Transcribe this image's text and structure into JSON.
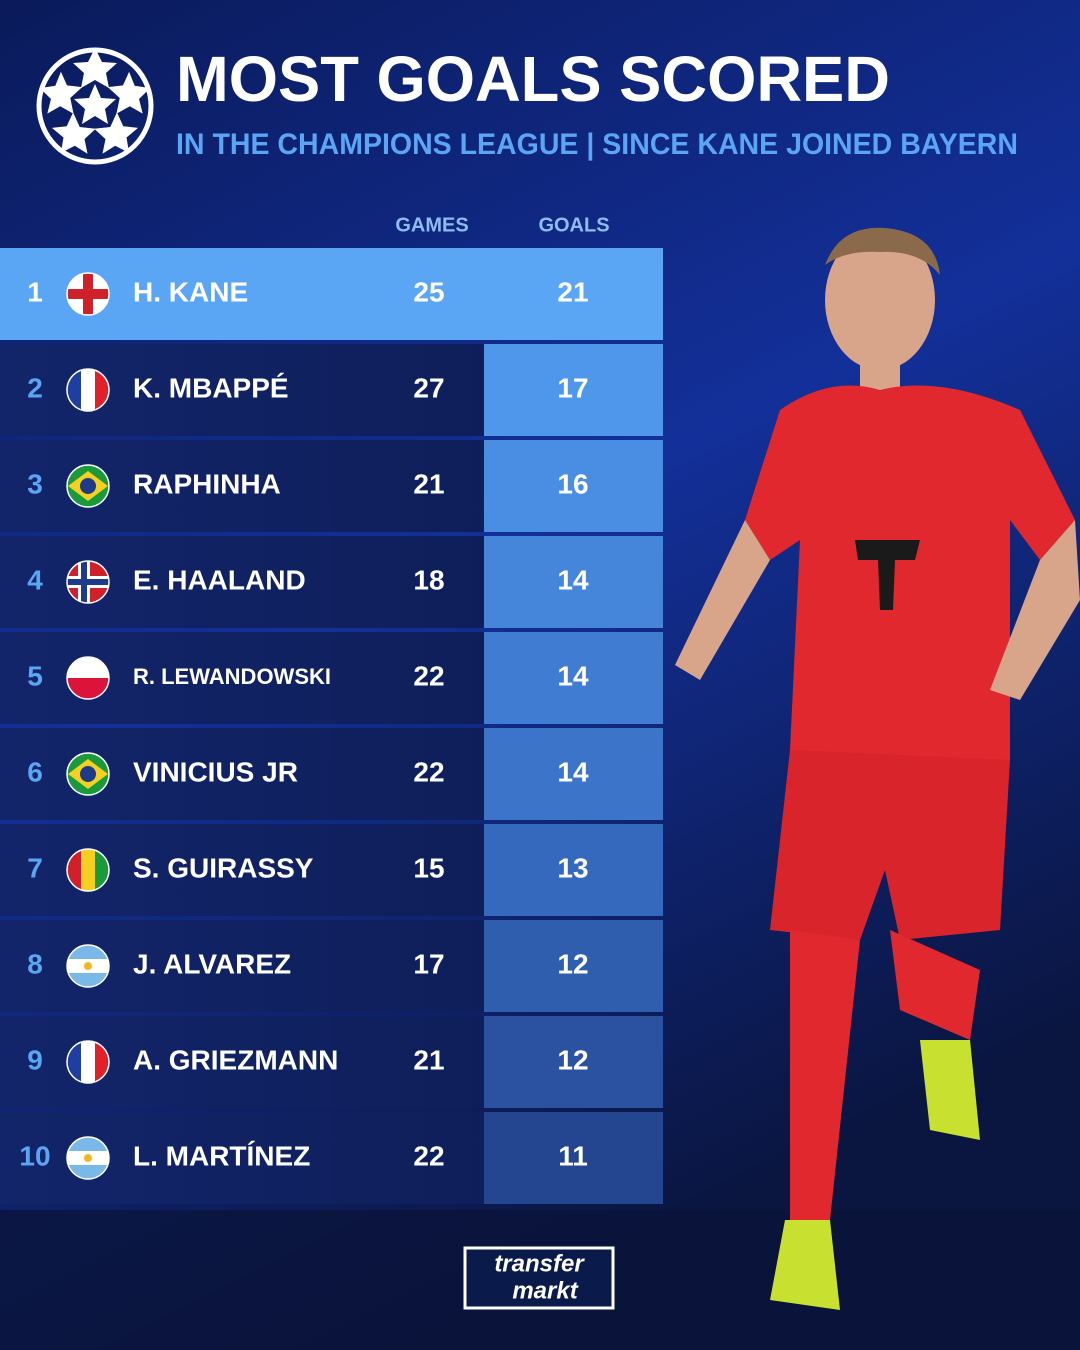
{
  "header": {
    "title": "MOST GOALS SCORED",
    "subtitle": "IN THE CHAMPIONS LEAGUE | SINCE KANE JOINED BAYERN"
  },
  "table": {
    "columns": [
      "GAMES",
      "GOALS"
    ],
    "rows": [
      [
        1,
        "H. KANE",
        25,
        21
      ],
      [
        2,
        "K. MBAPPÉ",
        27,
        17
      ],
      [
        3,
        "RAPHINHA",
        21,
        16
      ],
      [
        4,
        "E. HAALAND",
        18,
        14
      ],
      [
        5,
        "R. LEWANDOWSKI",
        22,
        14
      ],
      [
        6,
        "VINICIUS JR",
        22,
        14
      ],
      [
        7,
        "S. GUIRASSY",
        15,
        13
      ],
      [
        8,
        "J. ALVAREZ",
        17,
        12
      ],
      [
        9,
        "A. GRIEZMANN",
        21,
        12
      ],
      [
        10,
        "L. MARTÍNEZ",
        22,
        11
      ]
    ]
  },
  "footer": {
    "logo": [
      "transfer",
      "markt"
    ]
  }
}
